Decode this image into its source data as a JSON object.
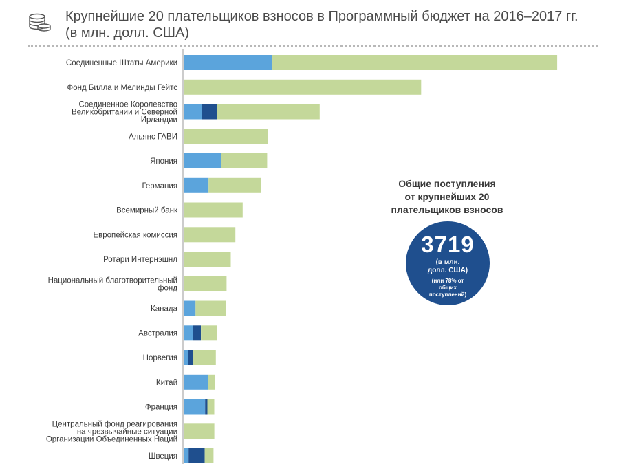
{
  "header": {
    "title_line1": "Крупнейшие 20 плательщиков взносов в Программный бюджет на 2016–2017 гг.",
    "title_line2": "(в млн. долл. США)"
  },
  "summary": {
    "line1": "Общие поступления",
    "line2": "от крупнейших 20",
    "line3": "плательщиков взносов",
    "total": "3719",
    "unit_line1": "(в млн.",
    "unit_line2": "долл. США)",
    "note_line1": "(или 78% от",
    "note_line2": "общих",
    "note_line3": "поступлений)"
  },
  "colors": {
    "light_blue": "#5ba4dc",
    "dark_blue": "#1f4f8e",
    "green": "#c4d89a",
    "title": "#4a4a4a"
  },
  "chart_data": {
    "type": "bar",
    "orientation": "horizontal",
    "stacked": true,
    "title": "Крупнейшие 20 плательщиков взносов в Программный бюджет на 2016–2017 гг. (в млн. долл. США)",
    "categories": [
      [
        "Соединенные Штаты Америки"
      ],
      [
        "Фонд Билла и Мелинды Гейтс"
      ],
      [
        "Соединенное Королевство",
        "Великобритании и Северной",
        "Ирландии"
      ],
      [
        "Альянс ГАВИ"
      ],
      [
        "Япония"
      ],
      [
        "Германия"
      ],
      [
        "Всемирный банк"
      ],
      [
        "Европейская комиссия"
      ],
      [
        "Ротари Интернэшнл"
      ],
      [
        "Национальный благотворительный",
        "фонд"
      ],
      [
        "Канада"
      ],
      [
        "Австралия"
      ],
      [
        "Норвегия"
      ],
      [
        "Китай"
      ],
      [
        "Франция"
      ],
      [
        "Центральный фонд реагирования",
        "на чрезвычайные ситуации",
        "Организации Объединенных Наций"
      ],
      [
        "Швеция"
      ]
    ],
    "series": [
      {
        "color": "#5ba4dc",
        "values": [
          230,
          0,
          47,
          0,
          98,
          65,
          0,
          0,
          0,
          0,
          31,
          25,
          11,
          64,
          56,
          0,
          13
        ]
      },
      {
        "color": "#1f4f8e",
        "values": [
          0,
          0,
          40,
          0,
          0,
          0,
          0,
          0,
          0,
          0,
          0,
          20,
          13,
          0,
          6,
          0,
          42
        ]
      },
      {
        "color": "#c4d89a",
        "values": [
          745,
          620,
          268,
          220,
          120,
          137,
          154,
          135,
          123,
          112,
          79,
          42,
          60,
          18,
          18,
          80,
          23
        ]
      }
    ],
    "xlim": [
      0,
      1000
    ],
    "grid": false,
    "legend": "none"
  }
}
